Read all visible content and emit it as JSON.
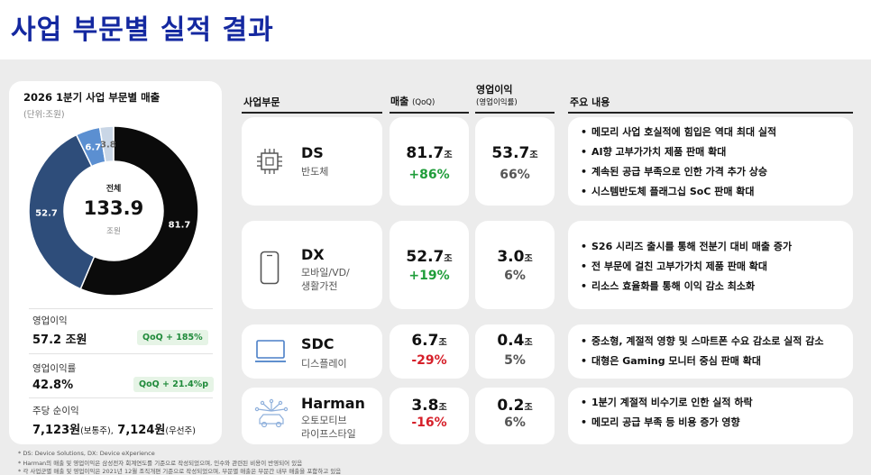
{
  "title": "사업 부문별 실적 결과",
  "left": {
    "title": "2026 1분기 사업 부문별 매출",
    "unit": "(단위:조원)",
    "center_label": "전체",
    "center_value": "133.9",
    "center_unit": "조원",
    "kpis": [
      {
        "label": "영업이익",
        "value": "57.2 조원",
        "badge": "QoQ + 185%"
      },
      {
        "label": "영업이익률",
        "value": "42.8%",
        "badge": "QoQ + 21.4%p"
      },
      {
        "label": "주당 순이익",
        "value_main1": "7,123원",
        "value_sub1": "(보통주),",
        "value_main2": " 7,124원",
        "value_sub2": "(우선주)"
      }
    ]
  },
  "headers": {
    "segment": "사업부문",
    "sales": "매출",
    "sales_sub": "(QoQ)",
    "op": "영업이익",
    "op_sub": "(영업이익률)",
    "notes": "주요 내용"
  },
  "segments": [
    {
      "name": "DS",
      "sub": "반도체",
      "sales": "81.7",
      "sales_unit": "조",
      "sales_qoq": "+86%",
      "op": "53.7",
      "op_unit": "조",
      "op_margin": "66%",
      "bullets": [
        "메모리 사업 호실적에 힘입은 역대 최대 실적",
        "AI향 고부가가치 제품 판매 확대",
        "계속된 공급 부족으로 인한 가격 추가 상승",
        "시스템반도체 플래그십 SoC 판매 확대"
      ]
    },
    {
      "name": "DX",
      "sub": "모바일/VD/\n생활가전",
      "sales": "52.7",
      "sales_unit": "조",
      "sales_qoq": "+19%",
      "op": "3.0",
      "op_unit": "조",
      "op_margin": "6%",
      "bullets": [
        "S26 시리즈 출시를 통해 전분기 대비 매출 증가",
        "전 부문에 걸친 고부가가치 제품 판매 확대",
        "리소스 효율화를 통해 이익 감소 최소화"
      ]
    },
    {
      "name": "SDC",
      "sub": "디스플레이",
      "sales": "6.7",
      "sales_unit": "조",
      "sales_qoq": "-29%",
      "op": "0.4",
      "op_unit": "조",
      "op_margin": "5%",
      "bullets": [
        "중소형, 계절적 영향 및 스마트폰 수요 감소로 실적 감소",
        "대형은 Gaming 모니터 중심 판매 확대"
      ]
    },
    {
      "name": "Harman",
      "sub": "오토모티브\n라이프스타일",
      "sales": "3.8",
      "sales_unit": "조",
      "sales_qoq": "-16%",
      "op": "0.2",
      "op_unit": "조",
      "op_margin": "6%",
      "bullets": [
        "1분기 계절적 비수기로 인한 실적 하락",
        "메모리 공급 부족 등 비용 증가 영향"
      ]
    }
  ],
  "footnotes": [
    "* DS: Device Solutions, DX: Device eXperience",
    "* Harman의 매출 및 영업이익은 삼성전자 회계연도를 기준으로 작성되었으며, 인수와 관련된 비용이 반영되어 있음",
    "* 각 사업군별 매출 및 영업이익은 2021년 12월 조직개편 기준으로 작성되었으며, 부문별 매출은 부문간 내부 매출을 포함하고 있음"
  ],
  "colors": {
    "ds": "#0b0b0b",
    "dx": "#2e4d7a",
    "sdc": "#5b8fd1",
    "harman": "#c9d6e6",
    "accent": "#1428a0"
  },
  "chart_data": {
    "type": "pie",
    "title": "2026 1분기 사업 부문별 매출",
    "unit": "(단위:조원)",
    "style": "donut",
    "categories": [
      "DS",
      "DX",
      "SDC",
      "Harman"
    ],
    "values": [
      81.7,
      52.7,
      6.7,
      3.8
    ],
    "labels": [
      "81.7",
      "52.7",
      "6.7",
      "3.8"
    ],
    "colors": [
      "#0b0b0b",
      "#2e4d7a",
      "#5b8fd1",
      "#c9d6e6"
    ],
    "total": 133.9
  }
}
